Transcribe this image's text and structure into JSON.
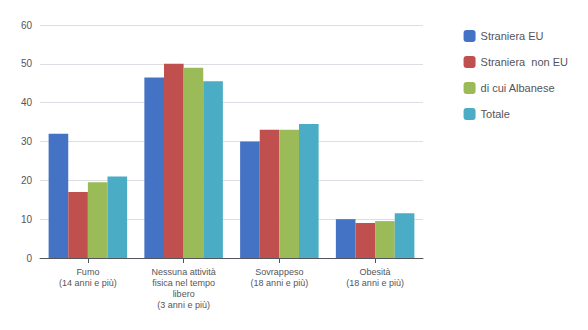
{
  "chart_data": {
    "type": "bar",
    "categories": [
      "Fumo\n(14 anni e più)",
      "Nessuna attività\nfisica nel tempo\nlibero\n(3 anni e più)",
      "Sovrappeso\n(18 anni e più)",
      "Obesità\n(18 anni e più)"
    ],
    "series": [
      {
        "name": "Straniera EU",
        "color": "#4472c4",
        "values": [
          32,
          46.5,
          30,
          10
        ]
      },
      {
        "name": "Straniera  non EU",
        "color": "#c0504d",
        "values": [
          17,
          50,
          33,
          9
        ]
      },
      {
        "name": "di cui Albanese",
        "color": "#9bbb59",
        "values": [
          19.5,
          49,
          33,
          9.5
        ]
      },
      {
        "name": "Totale",
        "color": "#4bacc6",
        "values": [
          21,
          45.5,
          34.5,
          11.5
        ]
      }
    ],
    "ylim": [
      0,
      60
    ],
    "yticks": [
      0,
      10,
      20,
      30,
      40,
      50,
      60
    ],
    "grid": true,
    "legend": "right"
  }
}
